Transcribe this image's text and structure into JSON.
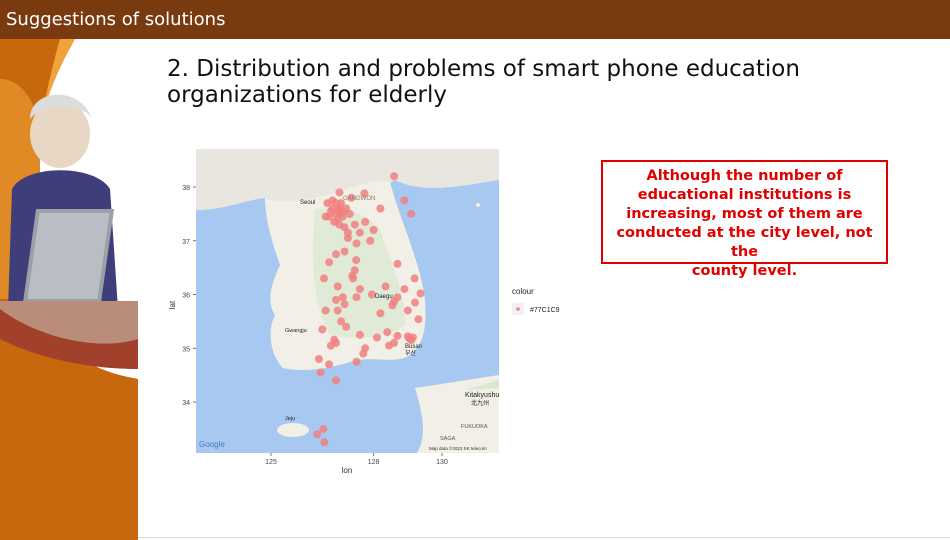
{
  "header": {
    "title": "Suggestions of solutions"
  },
  "slide": {
    "title_line1": "2. Distribution and problems of smart phone education",
    "title_line2": "organizations for elderly"
  },
  "callout": {
    "lines": [
      "Although the number of",
      "educational institutions is",
      "increasing, most of them are",
      "conducted at the city level, not the",
      "county level."
    ]
  },
  "chart_data": {
    "type": "scatter",
    "xlabel": "lon",
    "ylabel": "lat",
    "x_ticks": [
      125,
      128,
      130
    ],
    "y_ticks": [
      34,
      35,
      36,
      37,
      38
    ],
    "legend": {
      "title": "colour",
      "entries": [
        "#77C1C9"
      ],
      "position": "right"
    },
    "point_color": "#f08080",
    "map_labels": {
      "google": "Google",
      "attribution": "Map data ©2023 SK telecom",
      "kitakyushu": "Kitakyushu",
      "kitakyushu_kr": "北九州",
      "fukuoka": "FUKUOKA",
      "saga": "SAGA",
      "seoul": "Seoul",
      "busan": "Busan",
      "busan_kr": "부산",
      "daegu": "Daegu",
      "gangwon": "GANGWON",
      "jeju": "Jeju",
      "gwangju": "Gwangju"
    },
    "points": [
      [
        126.98,
        37.57
      ],
      [
        127.03,
        37.52
      ],
      [
        126.9,
        37.5
      ],
      [
        127.1,
        37.45
      ],
      [
        126.8,
        37.6
      ],
      [
        126.7,
        37.45
      ],
      [
        127.0,
        37.3
      ],
      [
        127.2,
        37.6
      ],
      [
        126.95,
        37.4
      ],
      [
        127.05,
        37.7
      ],
      [
        126.6,
        37.45
      ],
      [
        126.85,
        37.35
      ],
      [
        127.3,
        37.5
      ],
      [
        127.0,
        37.9
      ],
      [
        126.8,
        37.75
      ],
      [
        127.15,
        37.25
      ],
      [
        127.45,
        37.3
      ],
      [
        127.75,
        37.35
      ],
      [
        128.0,
        37.2
      ],
      [
        127.6,
        37.15
      ],
      [
        127.9,
        37.0
      ],
      [
        127.73,
        37.88
      ],
      [
        128.9,
        37.75
      ],
      [
        128.6,
        38.2
      ],
      [
        129.1,
        37.5
      ],
      [
        128.2,
        37.6
      ],
      [
        127.5,
        36.95
      ],
      [
        127.49,
        36.64
      ],
      [
        127.38,
        36.35
      ],
      [
        127.15,
        36.8
      ],
      [
        126.7,
        36.6
      ],
      [
        126.55,
        36.3
      ],
      [
        126.95,
        36.15
      ],
      [
        127.1,
        35.95
      ],
      [
        127.15,
        35.82
      ],
      [
        126.9,
        35.9
      ],
      [
        127.5,
        35.95
      ],
      [
        128.6,
        35.87
      ],
      [
        128.55,
        35.8
      ],
      [
        128.7,
        35.95
      ],
      [
        128.35,
        36.15
      ],
      [
        129.37,
        36.02
      ],
      [
        128.7,
        36.57
      ],
      [
        129.2,
        36.3
      ],
      [
        128.9,
        36.1
      ],
      [
        129.21,
        35.85
      ],
      [
        128.1,
        35.2
      ],
      [
        128.7,
        35.23
      ],
      [
        128.6,
        35.1
      ],
      [
        129.05,
        35.18
      ],
      [
        129.1,
        35.15
      ],
      [
        129.0,
        35.22
      ],
      [
        129.15,
        35.2
      ],
      [
        129.31,
        35.54
      ],
      [
        128.4,
        35.3
      ],
      [
        127.75,
        35.0
      ],
      [
        126.85,
        35.16
      ],
      [
        126.9,
        35.1
      ],
      [
        126.75,
        35.05
      ],
      [
        126.4,
        34.8
      ],
      [
        126.7,
        34.7
      ],
      [
        127.5,
        34.75
      ],
      [
        127.7,
        34.9
      ],
      [
        127.2,
        35.4
      ],
      [
        126.5,
        35.35
      ],
      [
        126.95,
        35.7
      ],
      [
        126.9,
        34.4
      ],
      [
        126.53,
        33.5
      ],
      [
        126.56,
        33.25
      ],
      [
        126.35,
        33.4
      ],
      [
        127.25,
        37.15
      ],
      [
        126.9,
        37.7
      ],
      [
        127.0,
        37.6
      ],
      [
        127.1,
        37.55
      ],
      [
        126.75,
        37.55
      ],
      [
        126.65,
        37.7
      ],
      [
        127.35,
        37.8
      ],
      [
        127.25,
        37.05
      ],
      [
        127.45,
        36.45
      ],
      [
        127.6,
        36.1
      ],
      [
        127.95,
        36.0
      ],
      [
        128.2,
        35.65
      ],
      [
        129.0,
        35.7
      ],
      [
        128.45,
        35.05
      ],
      [
        127.6,
        35.25
      ],
      [
        126.6,
        35.7
      ],
      [
        127.05,
        35.5
      ],
      [
        126.45,
        34.55
      ],
      [
        127.4,
        36.3
      ],
      [
        126.9,
        36.75
      ]
    ]
  }
}
